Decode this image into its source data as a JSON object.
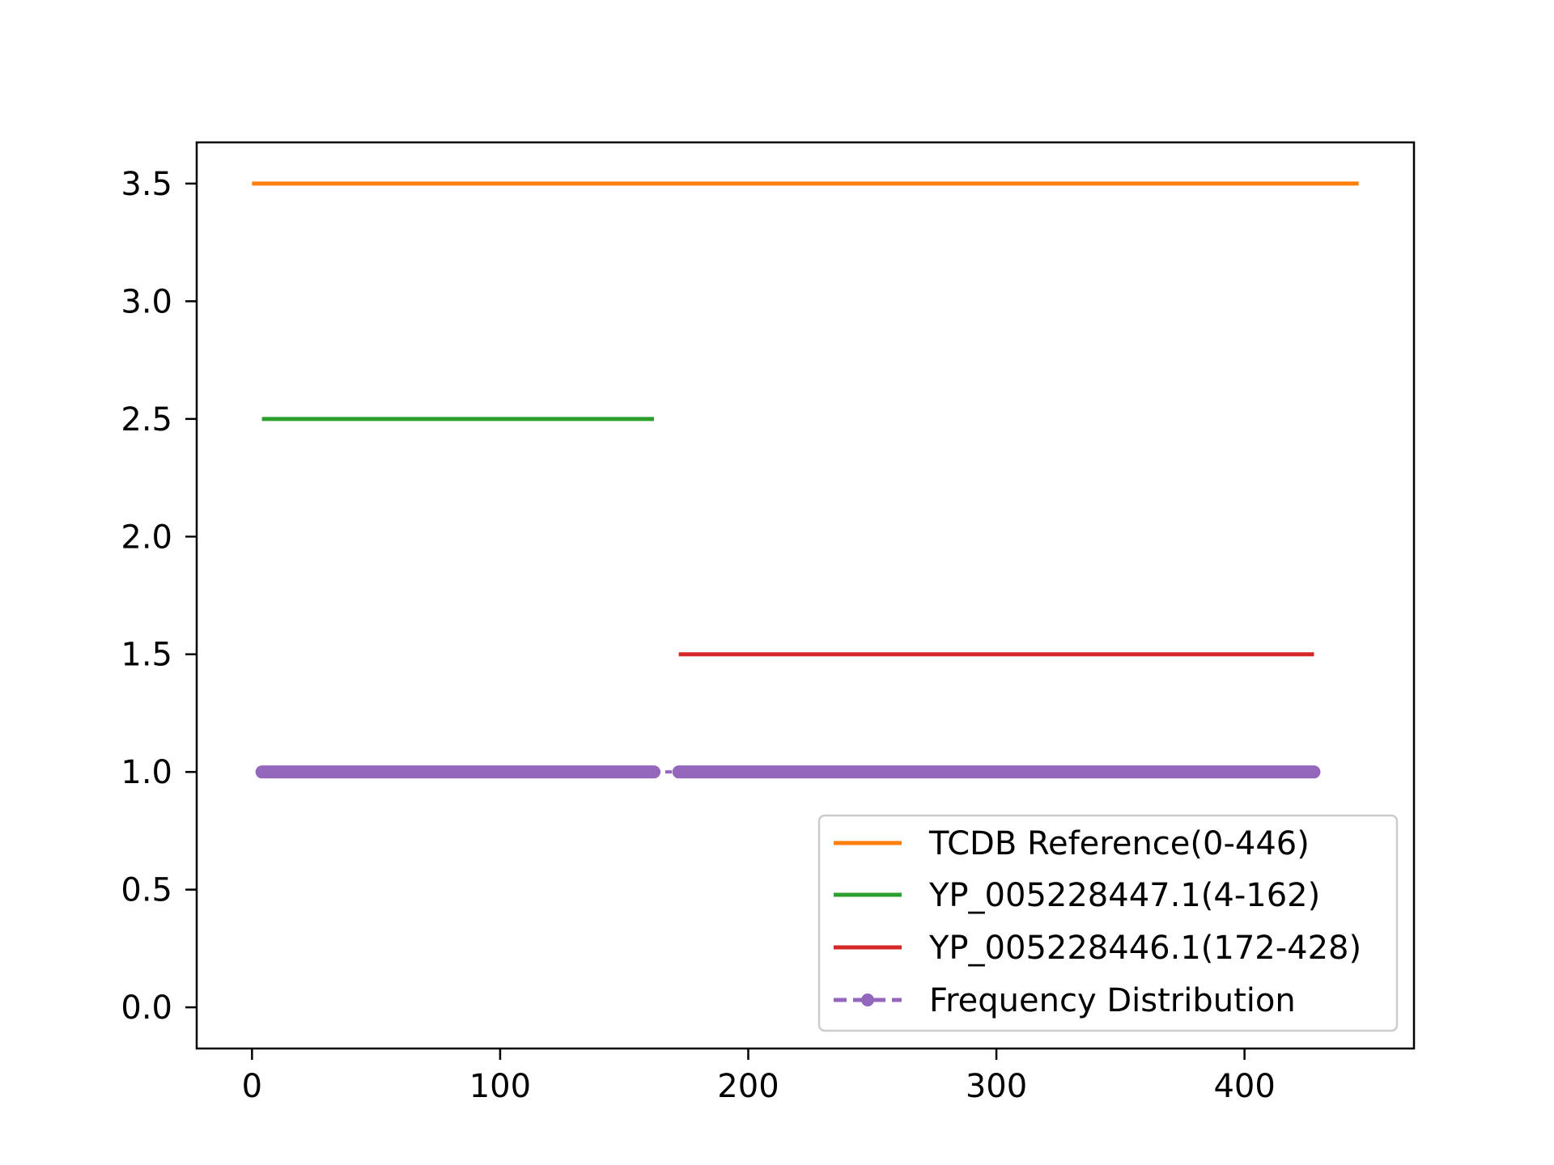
{
  "chart_data": {
    "type": "line",
    "title": "",
    "xlabel": "",
    "ylabel": "",
    "xlim": [
      -22.3,
      468.3
    ],
    "ylim": [
      -0.175,
      3.675
    ],
    "xticks": [
      0,
      100,
      200,
      300,
      400
    ],
    "yticks": [
      0.0,
      0.5,
      1.0,
      1.5,
      2.0,
      2.5,
      3.0,
      3.5
    ],
    "xtick_labels": [
      "0",
      "100",
      "200",
      "300",
      "400"
    ],
    "ytick_labels": [
      "0.0",
      "0.5",
      "1.0",
      "1.5",
      "2.0",
      "2.5",
      "3.0",
      "3.5"
    ],
    "grid": false,
    "legend_position": "lower-right",
    "series": [
      {
        "name": "TCDB Reference(0-446)",
        "color": "#ff7f0e",
        "style": "solid",
        "x": [
          0,
          446
        ],
        "y": [
          3.5,
          3.5
        ]
      },
      {
        "name": "YP_005228447.1(4-162)",
        "color": "#2ca02c",
        "style": "solid",
        "x": [
          4,
          162
        ],
        "y": [
          2.5,
          2.5
        ]
      },
      {
        "name": "YP_005228446.1(172-428)",
        "color": "#d62728",
        "style": "solid",
        "x": [
          172,
          428
        ],
        "y": [
          1.5,
          1.5
        ]
      },
      {
        "name": "Frequency Distribution",
        "color": "#9467bd",
        "style": "dashed-dots",
        "segments": [
          {
            "x": [
              4,
              162
            ],
            "y": [
              1,
              1
            ]
          },
          {
            "x": [
              172,
              428
            ],
            "y": [
              1,
              1
            ]
          }
        ],
        "gap_x": [
          162,
          172
        ],
        "y_value": 1
      }
    ]
  }
}
